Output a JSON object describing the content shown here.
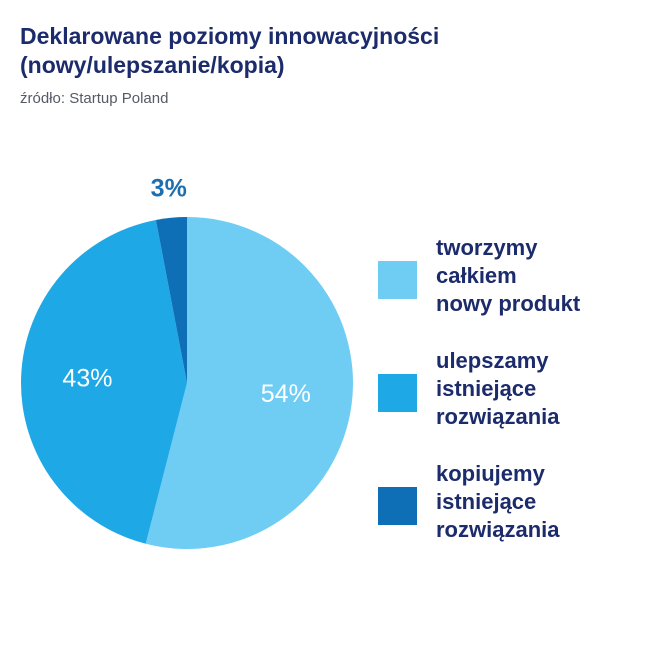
{
  "header": {
    "title_line1": "Deklarowane poziomy innowacyjności",
    "title_line2": "(nowy/ulepszanie/kopia)",
    "source": "źródło: Startup Poland"
  },
  "chart_data": {
    "type": "pie",
    "title": "Deklarowane poziomy innowacyjności (nowy/ulepszanie/kopia)",
    "subtitle": "źródło: Startup Poland",
    "slices": [
      {
        "label": "tworzymy całkiem nowy produkt",
        "value": 54,
        "value_label": "54%",
        "color": "#6fcdf4",
        "label_color": "#ffffff"
      },
      {
        "label": "ulepszamy istniejące rozwiązania",
        "value": 43,
        "value_label": "43%",
        "color": "#1fa8e6",
        "label_color": "#ffffff"
      },
      {
        "label": "kopiujemy istniejące rozwiązania",
        "value": 3,
        "value_label": "3%",
        "color": "#0f6fb6",
        "label_color": "#1e6fb0"
      }
    ],
    "legend": {
      "position": "right",
      "items": [
        {
          "lines": [
            "tworzymy",
            "całkiem",
            "nowy produkt"
          ],
          "color": "#6fcdf4"
        },
        {
          "lines": [
            "ulepszamy",
            "istniejące",
            "rozwiązania"
          ],
          "color": "#1fa8e6"
        },
        {
          "lines": [
            "kopiujemy",
            "istniejące",
            "rozwiązania"
          ],
          "color": "#0f6fb6"
        }
      ]
    }
  }
}
